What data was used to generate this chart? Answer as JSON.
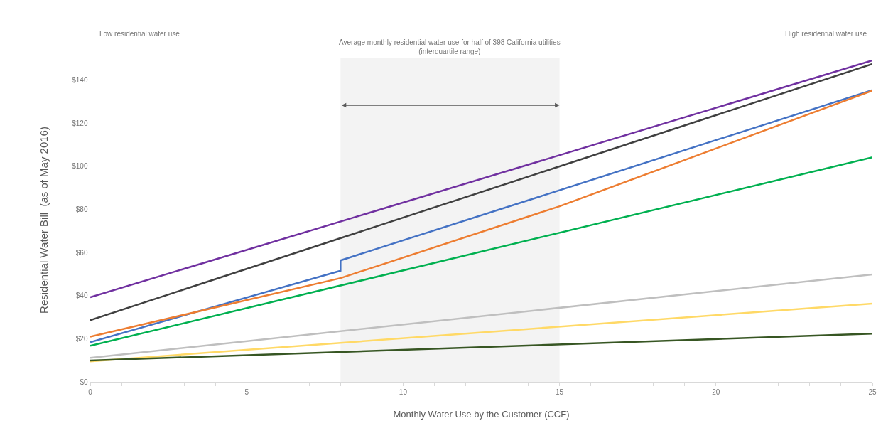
{
  "chart_data": {
    "type": "line",
    "xlabel": "Monthly Water Use by the Customer (CCF)",
    "ylabel": "Residential Water Bill  (as of May 2016)",
    "annotations": [
      "Low residential water use",
      "High residential water use"
    ],
    "bands": [
      {
        "axis": "x",
        "from": 8,
        "to": 15,
        "label": "Average monthly residential water use for half of 398 California utilities\n(interquartile range)",
        "color": "#595959"
      }
    ],
    "series": [
      {
        "color": "#7030a0",
        "x": [
          0,
          25
        ],
        "values": [
          39.2,
          149
        ]
      },
      {
        "color": "#404040",
        "x": [
          0,
          25
        ],
        "values": [
          28.6,
          147.4
        ]
      },
      {
        "color": "#4472c4",
        "x": [
          0,
          8,
          8,
          25
        ],
        "values": [
          18.4,
          51.5,
          56.3,
          135.3
        ]
      },
      {
        "color": "#ed7d31",
        "x": [
          0,
          8,
          15,
          25
        ],
        "values": [
          20.9,
          48.1,
          81.4,
          135
        ]
      },
      {
        "color": "#00b050",
        "x": [
          0,
          25
        ],
        "values": [
          16.7,
          104.1
        ]
      },
      {
        "color": "#bfbfbf",
        "x": [
          0,
          25
        ],
        "values": [
          11.1,
          49.8
        ]
      },
      {
        "color": "#ffd966",
        "x": [
          0,
          25
        ],
        "values": [
          9.5,
          36.3
        ]
      },
      {
        "color": "#375623",
        "x": [
          0,
          25
        ],
        "values": [
          9.9,
          22.3
        ]
      }
    ],
    "xlim": [
      0,
      25
    ],
    "ylim": [
      0,
      150
    ],
    "xticks": [
      0,
      {
        "value": 1,
        "label": null
      },
      {
        "value": 2,
        "label": null
      },
      {
        "value": 3,
        "label": null
      },
      {
        "value": 4,
        "label": null
      },
      5,
      {
        "value": 6,
        "label": null
      },
      {
        "value": 7,
        "label": null
      },
      {
        "value": 8,
        "label": null
      },
      {
        "value": 9,
        "label": null
      },
      10,
      {
        "value": 11,
        "label": null
      },
      {
        "value": 12,
        "label": null
      },
      {
        "value": 13,
        "label": null
      },
      {
        "value": 14,
        "label": null
      },
      15,
      {
        "value": 16,
        "label": null
      },
      {
        "value": 17,
        "label": null
      },
      {
        "value": 18,
        "label": null
      },
      {
        "value": 19,
        "label": null
      },
      20,
      {
        "value": 21,
        "label": null
      },
      {
        "value": 22,
        "label": null
      },
      {
        "value": 23,
        "label": null
      },
      {
        "value": 24,
        "label": null
      },
      25
    ],
    "yticks": [
      {
        "value": 0,
        "label": "$0"
      },
      {
        "value": 20,
        "label": "$20"
      },
      {
        "value": 40,
        "label": "$40"
      },
      {
        "value": 60,
        "label": "$60"
      },
      {
        "value": 80,
        "label": "$80"
      },
      {
        "value": 100,
        "label": "$100"
      },
      {
        "value": 120,
        "label": "$120"
      },
      {
        "value": 140,
        "label": "$140"
      }
    ],
    "marker": "none",
    "line_style": "solid"
  }
}
